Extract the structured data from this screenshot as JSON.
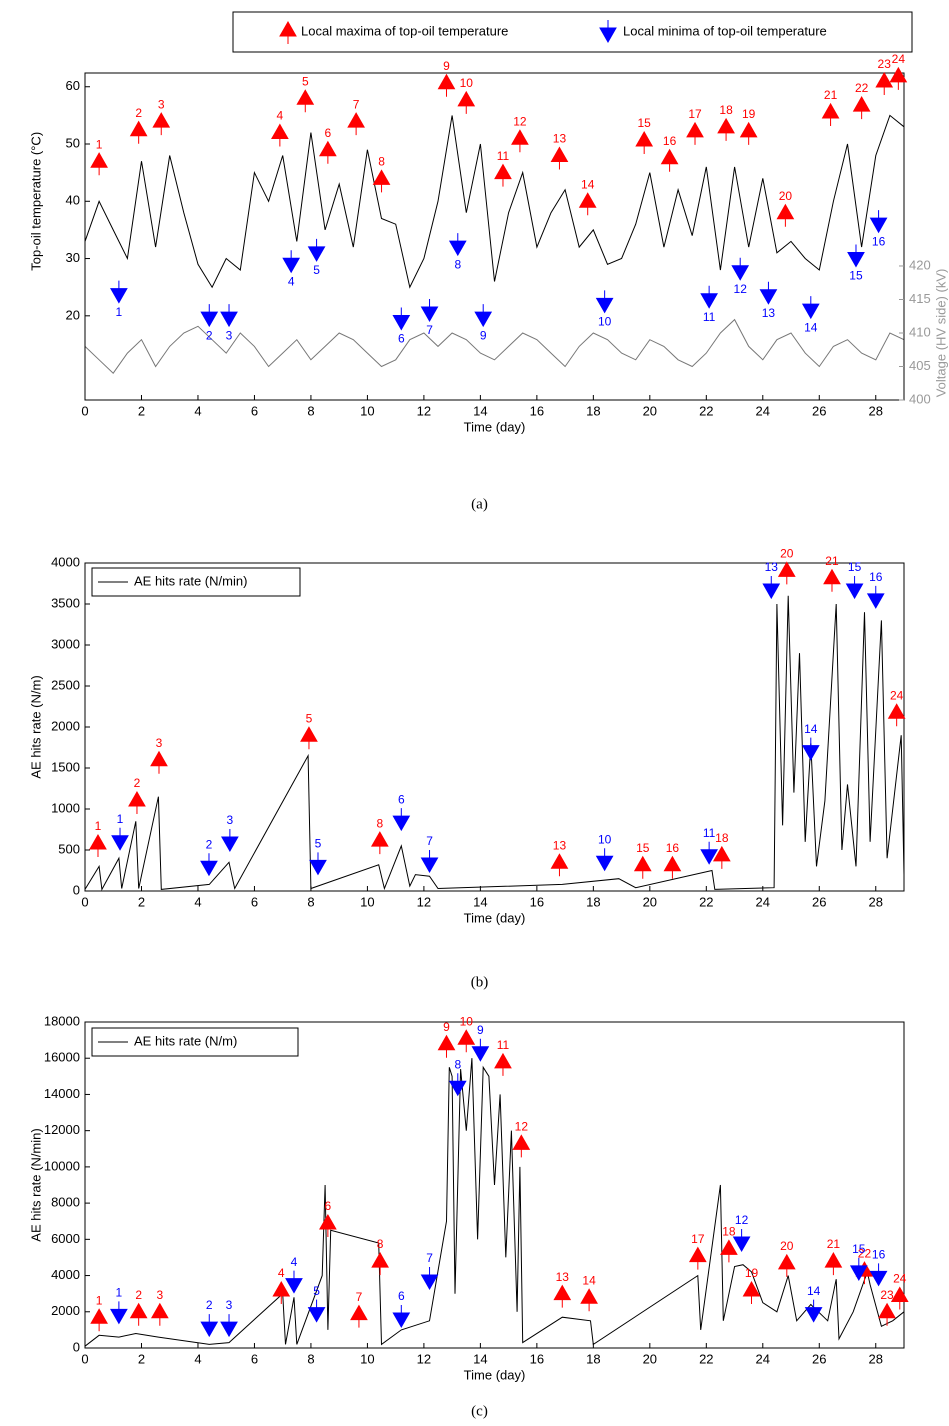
{
  "chart_data": [
    {
      "type": "line",
      "caption": "(a)",
      "xlabel": "Time (day)",
      "ylabel": "Top-oil temperature (°C)",
      "y2label": "Voltage (HV side) (kV)",
      "xlim": [
        0,
        29
      ],
      "xticks": [
        0,
        2,
        4,
        6,
        8,
        10,
        12,
        14,
        16,
        18,
        20,
        22,
        24,
        26,
        28
      ],
      "ylim": [
        5.3,
        62.4
      ],
      "yticks": [
        20,
        30,
        40,
        50,
        60
      ],
      "y2lim": [
        400,
        448.8
      ],
      "y2ticks": [
        400,
        405,
        410,
        415,
        420
      ],
      "x": [
        0,
        0.5,
        1,
        1.5,
        2,
        2.5,
        3,
        3.5,
        4,
        4.5,
        5,
        5.5,
        6,
        6.5,
        7,
        7.5,
        8,
        8.5,
        9,
        9.5,
        10,
        10.5,
        11,
        11.5,
        12,
        12.5,
        13,
        13.5,
        14,
        14.5,
        15,
        15.5,
        16,
        16.5,
        17,
        17.5,
        18,
        18.5,
        19,
        19.5,
        20,
        20.5,
        21,
        21.5,
        22,
        22.5,
        23,
        23.5,
        24,
        24.5,
        25,
        25.5,
        26,
        26.5,
        27,
        27.5,
        28,
        28.5,
        29
      ],
      "series": [
        {
          "color": "#000000",
          "values": [
            33,
            40,
            35,
            30,
            47,
            32,
            48,
            38,
            29,
            25,
            30,
            28,
            45,
            40,
            48,
            33,
            52,
            35,
            43,
            32,
            49,
            37,
            36,
            25,
            30,
            40,
            55,
            38,
            50,
            26,
            38,
            45,
            32,
            38,
            42,
            32,
            35,
            29,
            30,
            36,
            45,
            32,
            42,
            34,
            46,
            28,
            46,
            32,
            44,
            31,
            33,
            30,
            28,
            40,
            50,
            32,
            48,
            55,
            53
          ]
        },
        {
          "color": "#777777",
          "axis": "y2",
          "values": [
            408,
            406,
            404,
            407,
            409,
            405,
            408,
            410,
            411,
            409,
            407,
            410,
            408,
            405,
            407,
            409,
            406,
            408,
            410,
            409,
            407,
            405,
            406,
            409,
            410,
            408,
            410,
            409,
            407,
            406,
            408,
            410,
            409,
            407,
            405,
            408,
            410,
            409,
            407,
            406,
            409,
            408,
            406,
            405,
            407,
            410,
            412,
            408,
            406,
            409,
            410,
            407,
            405,
            408,
            409,
            407,
            406,
            410,
            409
          ]
        }
      ],
      "maxima": {
        "name": "Local maxima of top-oil temperature",
        "color": "#ff0000",
        "x": [
          0.5,
          1.9,
          2.7,
          6.9,
          7.8,
          8.6,
          9.6,
          10.5,
          12.8,
          13.5,
          14.8,
          15.4,
          16.8,
          17.8,
          19.8,
          20.7,
          21.6,
          22.7,
          23.5,
          24.8,
          26.4,
          27.5,
          28.3,
          28.8
        ],
        "y": [
          47,
          52.5,
          54,
          52,
          58,
          49,
          54,
          44,
          60.7,
          57.7,
          45,
          51,
          48,
          40,
          50.7,
          47.6,
          52.3,
          53,
          52.3,
          38,
          55.6,
          56.8,
          61,
          61.9
        ],
        "labels": [
          "1",
          "2",
          "3",
          "4",
          "5",
          "6",
          "7",
          "8",
          "9",
          "10",
          "11",
          "12",
          "13",
          "14",
          "15",
          "16",
          "17",
          "18",
          "19",
          "20",
          "21",
          "22",
          "23",
          "24"
        ]
      },
      "minima": {
        "name": "Local minima of top-oil temperature",
        "color": "#0000ff",
        "x": [
          1.2,
          4.4,
          5.1,
          7.3,
          8.2,
          11.2,
          12.2,
          13.2,
          14.1,
          18.4,
          22.1,
          23.2,
          24.2,
          25.7,
          27.3,
          28.1
        ],
        "y": [
          23.7,
          19.6,
          19.6,
          29,
          31,
          19,
          20.5,
          32,
          19.6,
          22,
          22.8,
          27.7,
          23.5,
          21,
          30,
          36
        ],
        "labels": [
          "1",
          "2",
          "3",
          "4",
          "5",
          "6",
          "7",
          "8",
          "9",
          "10",
          "11",
          "12",
          "13",
          "14",
          "15",
          "16"
        ]
      }
    },
    {
      "type": "line",
      "caption": "(b)",
      "xlabel": "Time (day)",
      "ylabel": "AE hits rate (N/m)",
      "xlim": [
        0,
        29
      ],
      "xticks": [
        0,
        2,
        4,
        6,
        8,
        10,
        12,
        14,
        16,
        18,
        20,
        22,
        24,
        26,
        28
      ],
      "ylim": [
        0,
        4000
      ],
      "yticks": [
        0,
        500,
        1000,
        1500,
        2000,
        2500,
        3000,
        3500,
        4000
      ],
      "x": [
        0,
        0.5,
        0.6,
        1.2,
        1.3,
        1.8,
        1.9,
        2.6,
        2.7,
        4.4,
        5.1,
        5.3,
        7.9,
        8,
        10.4,
        10.6,
        11.2,
        11.5,
        11.7,
        12.2,
        12.5,
        16.9,
        18.9,
        19.5,
        22.2,
        22.3,
        24.4,
        24.5,
        24.7,
        24.9,
        25.1,
        25.3,
        25.5,
        25.7,
        25.9,
        26.2,
        26.6,
        26.8,
        27,
        27.3,
        27.6,
        27.8,
        28.2,
        28.4,
        28.9,
        29
      ],
      "series": [
        {
          "name": "AE hits rate (N/min)",
          "color": "#000000",
          "values": [
            20,
            300,
            20,
            400,
            30,
            850,
            30,
            1150,
            20,
            80,
            350,
            30,
            1650,
            30,
            320,
            30,
            550,
            60,
            200,
            180,
            30,
            80,
            150,
            40,
            250,
            20,
            40,
            3500,
            800,
            3600,
            1200,
            2900,
            600,
            1800,
            300,
            1100,
            3500,
            500,
            1300,
            300,
            3400,
            600,
            3300,
            400,
            1900,
            200
          ]
        }
      ],
      "maxima": {
        "color": "#ff0000",
        "x": [
          0.46,
          1.84,
          2.62,
          7.93,
          10.44,
          16.8,
          19.75,
          20.8,
          22.55,
          24.85,
          26.45,
          28.74
        ],
        "y": [
          585,
          1110,
          1600,
          1900,
          620,
          350,
          320,
          320,
          440,
          3910,
          3820,
          2180
        ],
        "labels": [
          "1",
          "2",
          "3",
          "5",
          "8",
          "13",
          "15",
          "16",
          "18",
          "20",
          "21",
          "24"
        ]
      },
      "minima": {
        "color": "#0000ff",
        "x": [
          1.24,
          4.39,
          5.13,
          8.25,
          11.2,
          12.2,
          18.4,
          22.1,
          24.3,
          25.7,
          27.25,
          28.0
        ],
        "y": [
          600,
          290,
          585,
          300,
          840,
          330,
          350,
          430,
          3670,
          1700,
          3670,
          3550
        ],
        "labels": [
          "1",
          "2",
          "3",
          "5",
          "6",
          "7",
          "10",
          "11",
          "13",
          "14",
          "15",
          "16"
        ]
      }
    },
    {
      "type": "line",
      "caption": "(c)",
      "xlabel": "Time (day)",
      "ylabel": "AE hits rate (N/min)",
      "xlim": [
        0,
        29
      ],
      "xticks": [
        0,
        2,
        4,
        6,
        8,
        10,
        12,
        14,
        16,
        18,
        20,
        22,
        24,
        26,
        28
      ],
      "ylim": [
        0,
        18000
      ],
      "yticks": [
        0,
        2000,
        4000,
        6000,
        8000,
        10000,
        12000,
        14000,
        16000,
        18000
      ],
      "x": [
        0,
        0.5,
        1.2,
        1.8,
        2.6,
        4.4,
        5.1,
        7,
        7.1,
        7.4,
        7.5,
        8.4,
        8.5,
        8.6,
        8.7,
        10.4,
        10.5,
        11.2,
        12.2,
        12.8,
        12.9,
        13,
        13.1,
        13.3,
        13.5,
        13.7,
        13.9,
        14.1,
        14.3,
        14.5,
        14.7,
        14.9,
        15.1,
        15.3,
        15.4,
        15.5,
        16.9,
        17.9,
        18,
        21.7,
        21.8,
        22.5,
        22.6,
        23,
        23.3,
        23.6,
        24,
        24.5,
        24.9,
        25.2,
        25.7,
        26.3,
        26.6,
        26.7,
        27.2,
        27.7,
        27.8,
        28.2,
        28.6,
        29
      ],
      "series": [
        {
          "name": "AE hits rate (N/m)",
          "color": "#000000",
          "values": [
            100,
            700,
            600,
            800,
            600,
            200,
            300,
            3000,
            200,
            2800,
            200,
            4000,
            9000,
            1000,
            6500,
            5800,
            200,
            1000,
            1500,
            7000,
            15500,
            15000,
            3000,
            15400,
            12000,
            16000,
            6000,
            15500,
            15000,
            9000,
            14000,
            5000,
            12000,
            2000,
            10000,
            300,
            1700,
            1500,
            200,
            4000,
            1000,
            9000,
            1500,
            4500,
            4600,
            4200,
            2500,
            2000,
            4000,
            1500,
            2400,
            1500,
            3800,
            500,
            2000,
            4200,
            3500,
            1200,
            1500,
            2000
          ]
        }
      ],
      "maxima": {
        "color": "#ff0000",
        "x": [
          0.5,
          1.9,
          2.65,
          6.95,
          8.6,
          9.7,
          10.45,
          12.8,
          13.5,
          14.8,
          15.45,
          16.9,
          17.85,
          21.7,
          22.8,
          23.6,
          24.85,
          26.5,
          27.6,
          28.4,
          28.85
        ],
        "y": [
          1700,
          2000,
          2000,
          3200,
          6900,
          1900,
          4800,
          16800,
          17100,
          15800,
          11300,
          3000,
          2800,
          5100,
          5500,
          3200,
          4700,
          4800,
          4300,
          2000,
          2900
        ],
        "labels": [
          "1",
          "2",
          "3",
          "4",
          "6",
          "7",
          "8",
          "9",
          "10",
          "11",
          "12",
          "13",
          "14",
          "17",
          "18",
          "19",
          "20",
          "21",
          "22",
          "23",
          "24"
        ]
      },
      "minima": {
        "color": "#0000ff",
        "x": [
          1.2,
          4.4,
          5.1,
          7.4,
          8.2,
          11.2,
          12.2,
          13.2,
          14.0,
          23.25,
          25.8,
          27.4,
          28.1
        ],
        "y": [
          1800,
          1100,
          1100,
          3500,
          1900,
          1600,
          3700,
          14400,
          16300,
          5800,
          1900,
          4200,
          3900
        ],
        "labels": [
          "1",
          "2",
          "3",
          "4",
          "5",
          "6",
          "7",
          "8",
          "9",
          "12",
          "14",
          "15",
          "16"
        ]
      }
    }
  ]
}
